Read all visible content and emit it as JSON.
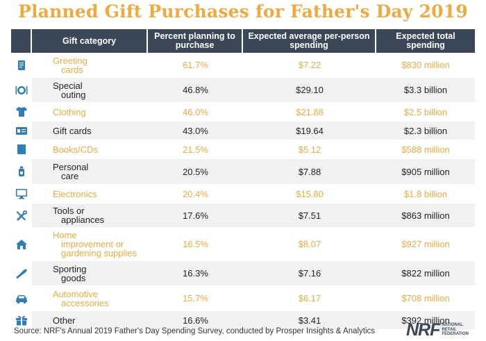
{
  "chart_data": {
    "type": "table",
    "title": "Planned Gift Purchases for Father's Day 2019",
    "columns": [
      "Gift category",
      "Percent planning to purchase",
      "Expected average per-person spending",
      "Expected total spending"
    ],
    "rows": [
      {
        "category": "Greeting cards",
        "lines": [
          "Greeting",
          "cards"
        ],
        "percent": "61.7%",
        "avg": "$7.22",
        "total": "$830 million",
        "icon": "greeting-card-icon"
      },
      {
        "category": "Special outing",
        "lines": [
          "Special",
          "outing"
        ],
        "percent": "46.8%",
        "avg": "$29.10",
        "total": "$3.3 billion",
        "icon": "plate-cutlery-icon"
      },
      {
        "category": "Clothing",
        "lines": [
          "Clothing"
        ],
        "percent": "46.0%",
        "avg": "$21.88",
        "total": "$2.5 billion",
        "icon": "shirt-icon"
      },
      {
        "category": "Gift cards",
        "lines": [
          "Gift cards"
        ],
        "percent": "43.0%",
        "avg": "$19.64",
        "total": "$2.3 billion",
        "icon": "gift-card-icon"
      },
      {
        "category": "Books/CDs",
        "lines": [
          "Books/CDs"
        ],
        "percent": "21.5%",
        "avg": "$5.12",
        "total": "$588 million",
        "icon": "book-icon"
      },
      {
        "category": "Personal care",
        "lines": [
          "Personal",
          "care"
        ],
        "percent": "20.5%",
        "avg": "$7.88",
        "total": "$905 million",
        "icon": "lotion-bottle-icon"
      },
      {
        "category": "Electronics",
        "lines": [
          "Electronics"
        ],
        "percent": "20.4%",
        "avg": "$15.80",
        "total": "$1.8 billion",
        "icon": "monitor-icon"
      },
      {
        "category": "Tools or appliances",
        "lines": [
          "Tools or",
          "appliances"
        ],
        "percent": "17.6%",
        "avg": "$7.51",
        "total": "$863 million",
        "icon": "tools-icon"
      },
      {
        "category": "Home improvement or gardening supplies",
        "lines": [
          "Home",
          "improvement or",
          "gardening supplies"
        ],
        "percent": "16.5%",
        "avg": "$8.07",
        "total": "$927 million",
        "icon": "house-icon"
      },
      {
        "category": "Sporting goods",
        "lines": [
          "Sporting",
          "goods"
        ],
        "percent": "16.3%",
        "avg": "$7.16",
        "total": "$822 million",
        "icon": "baseball-bat-icon"
      },
      {
        "category": "Automotive accessories",
        "lines": [
          "Automotive",
          "accessories"
        ],
        "percent": "15.7%",
        "avg": "$6.17",
        "total": "$708 million",
        "icon": "car-icon"
      },
      {
        "category": "Other",
        "lines": [
          "Other"
        ],
        "percent": "16.6%",
        "avg": "$3.41",
        "total": "$392 million",
        "icon": "gift-box-icon"
      }
    ]
  },
  "source": "Source: NRF's Annual 2019 Father's Day Spending Survey, conducted by Prosper Insights & Analytics",
  "logo": {
    "mark": "NRF",
    "sub": [
      "NATIONAL",
      "RETAIL",
      "FEDERATION"
    ]
  },
  "colors": {
    "accent": "#f2a93b",
    "header": "#3b4656",
    "icon": "#2e7fb8",
    "alt_row": "#f1f1f1"
  }
}
